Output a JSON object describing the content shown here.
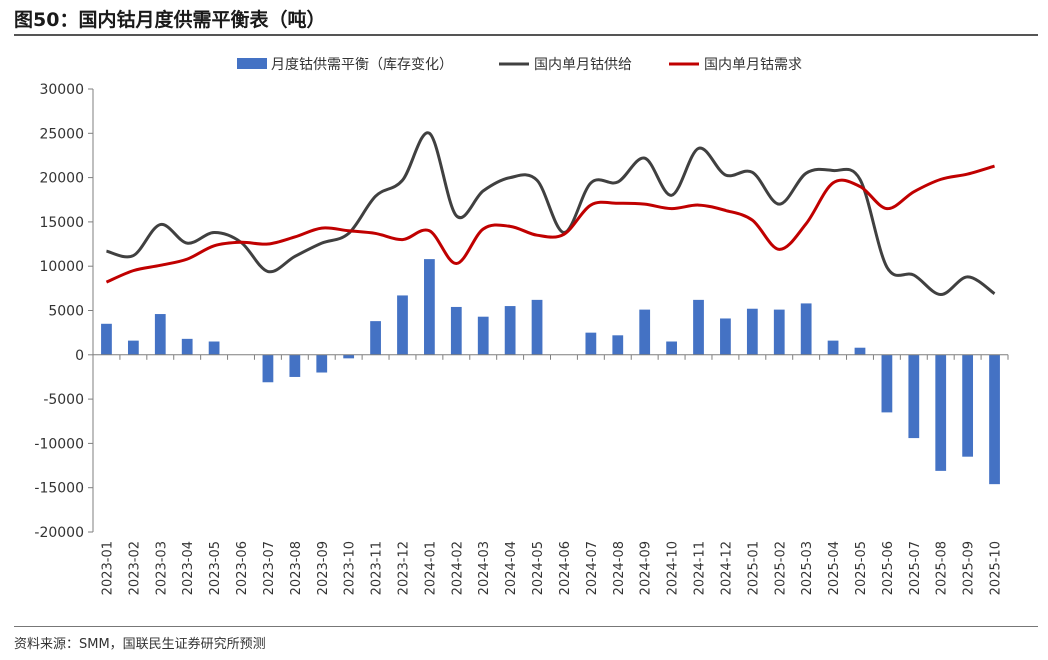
{
  "figure": {
    "title": "图50：国内钴月度供需平衡表（吨）",
    "source": "资料来源：SMM，国联民生证券研究所预测"
  },
  "colors": {
    "bar": "#4472C4",
    "supply": "#404040",
    "demand": "#C00000",
    "axis": "#7f7f7f"
  },
  "chart_data": {
    "type": "bar",
    "categories": [
      "2023-01",
      "2023-02",
      "2023-03",
      "2023-04",
      "2023-05",
      "2023-06",
      "2023-07",
      "2023-08",
      "2023-09",
      "2023-10",
      "2023-11",
      "2023-12",
      "2024-01",
      "2024-02",
      "2024-03",
      "2024-04",
      "2024-05",
      "2024-06",
      "2024-07",
      "2024-08",
      "2024-09",
      "2024-10",
      "2024-11",
      "2024-12",
      "2025-01",
      "2025-02",
      "2025-03",
      "2025-04",
      "2025-05",
      "2025-06",
      "2025-07",
      "2025-08",
      "2025-09",
      "2025-10"
    ],
    "ylim": [
      -20000,
      30000
    ],
    "yticks": [
      -20000,
      -15000,
      -10000,
      -5000,
      0,
      5000,
      10000,
      15000,
      20000,
      25000,
      30000
    ],
    "legend_position": "top",
    "grid": false,
    "series": [
      {
        "name": "月度钴供需平衡（库存变化）",
        "type": "bar",
        "values": [
          3500,
          1600,
          4600,
          1800,
          1500,
          0,
          -3100,
          -2500,
          -2000,
          -400,
          3800,
          6700,
          10800,
          5400,
          4300,
          5500,
          6200,
          0,
          2500,
          2200,
          5100,
          1500,
          6200,
          4100,
          5200,
          5100,
          5800,
          1600,
          800,
          -6500,
          -9400,
          -13100,
          -11500,
          -14600
        ]
      },
      {
        "name": "国内单月钴供给",
        "type": "line",
        "values": [
          11700,
          11200,
          14700,
          12600,
          13800,
          12700,
          9400,
          11100,
          12600,
          13700,
          17900,
          19700,
          25000,
          15700,
          18500,
          20000,
          19700,
          13800,
          19400,
          19500,
          22200,
          18000,
          23300,
          20300,
          20600,
          17000,
          20500,
          20800,
          19800,
          9900,
          9000,
          6800,
          8800,
          6900
        ]
      },
      {
        "name": "国内单月钴需求",
        "type": "line",
        "values": [
          8200,
          9500,
          10100,
          10800,
          12300,
          12700,
          12500,
          13300,
          14300,
          14000,
          13700,
          13000,
          14000,
          10300,
          14200,
          14500,
          13500,
          13600,
          16900,
          17100,
          17000,
          16500,
          16900,
          16300,
          15200,
          11900,
          14800,
          19400,
          19000,
          16500,
          18400,
          19800,
          20400,
          21300
        ]
      }
    ]
  }
}
